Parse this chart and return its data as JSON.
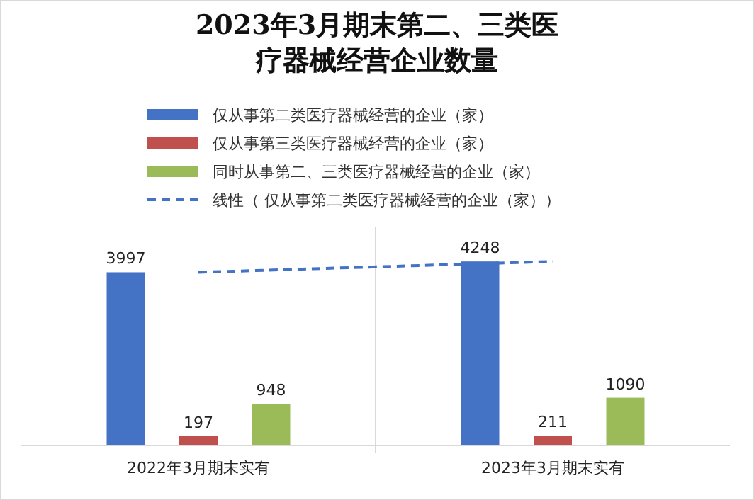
{
  "chart_data": {
    "type": "bar",
    "title": "2023年3月期末第二、三类医疗器械经营企业数量",
    "categories": [
      "2022年3月期末实有",
      "2023年3月期末实有"
    ],
    "series": [
      {
        "name": "仅从事第二类医疗器械经营的企业（家）",
        "color": "#4472c4",
        "values": [
          3997,
          4248
        ],
        "value_labels": [
          "3997",
          "4248"
        ]
      },
      {
        "name": "仅从事第三类医疗器械经营的企业（家）",
        "color": "#c0504d",
        "values": [
          197,
          211
        ],
        "value_labels": [
          "197",
          "211"
        ]
      },
      {
        "name": "同时从事第二、三类医疗器械经营的企业（家）",
        "color": "#9bbb59",
        "values": [
          948,
          1090
        ],
        "value_labels": [
          "948",
          "1090"
        ]
      },
      {
        "name": "线性（ 仅从事第二类医疗器械经营的企业（家））",
        "color": "#4472c4",
        "type": "line",
        "line_style": "dashed",
        "values": [
          3997,
          4248
        ]
      }
    ],
    "legend": "top"
  }
}
